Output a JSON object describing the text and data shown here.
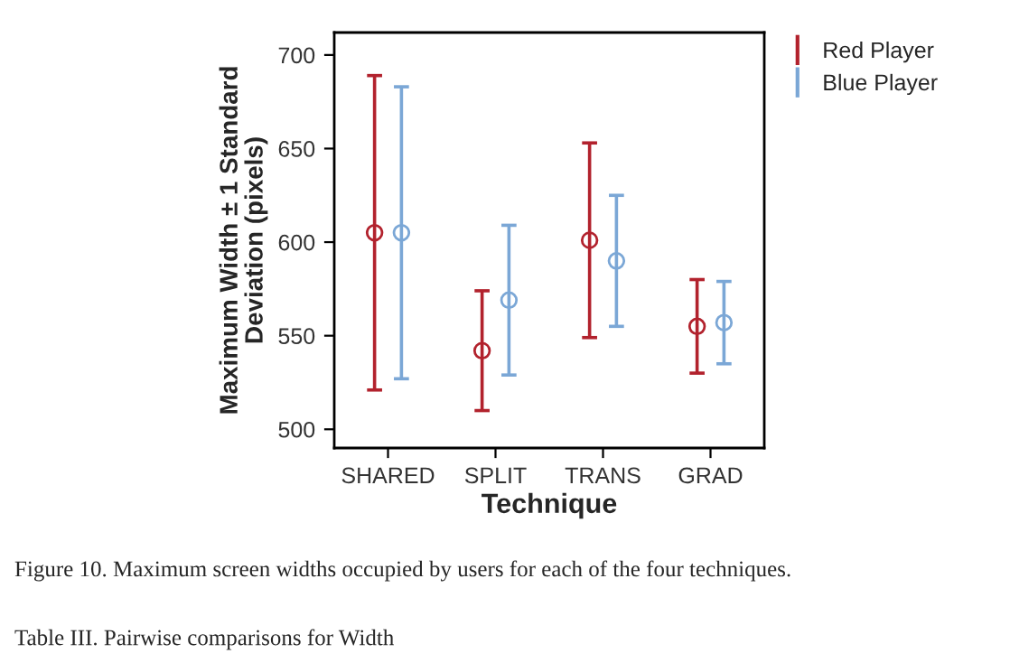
{
  "chart_data": {
    "type": "scatter",
    "xlabel": "Technique",
    "ylabel": "Maximum Width ± 1 Standard\nDeviation (pixels)",
    "categories": [
      "SHARED",
      "SPLIT",
      "TRANS",
      "GRAD"
    ],
    "series": [
      {
        "name": "Red Player",
        "color": "#b2222d",
        "values": [
          605,
          542,
          601,
          555
        ],
        "errors": [
          84,
          32,
          52,
          25
        ]
      },
      {
        "name": "Blue Player",
        "color": "#7ba7d6",
        "values": [
          605,
          569,
          590,
          557
        ],
        "errors": [
          78,
          40,
          35,
          22
        ]
      }
    ],
    "ylim": [
      490,
      712
    ],
    "yticks": [
      500,
      550,
      600,
      650,
      700
    ],
    "grid": false,
    "legend": "top right",
    "marker": "circle",
    "annotations": [
      "Figure 10. Maximum screen widths occupied by users for each of the four techniques.",
      "Table III. Pairwise comparisons for Width"
    ]
  }
}
